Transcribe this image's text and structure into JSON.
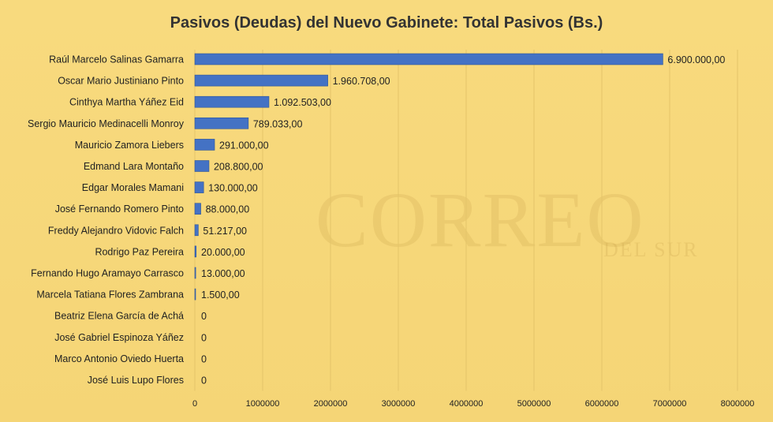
{
  "watermark": {
    "main": "CORREO",
    "sub": "DEL SUR"
  },
  "chart_data": {
    "type": "bar",
    "orientation": "horizontal",
    "title": "Pasivos (Deudas) del Nuevo Gabinete: Total Pasivos (Bs.)",
    "xlabel": "",
    "ylabel": "",
    "xlim": [
      0,
      8000000
    ],
    "x_ticks": [
      "0",
      "1000000",
      "2000000",
      "3000000",
      "4000000",
      "5000000",
      "6000000",
      "7000000",
      "8000000"
    ],
    "grid": true,
    "bar_color": "#4472c4",
    "categories": [
      "Raúl Marcelo Salinas Gamarra",
      "Oscar Mario Justiniano Pinto",
      "Cinthya Martha Yáñez Eid",
      "Sergio Mauricio Medinacelli Monroy",
      "Mauricio Zamora Liebers",
      "Edmand Lara Montaño",
      "Edgar Morales Mamani",
      "José Fernando Romero Pinto",
      "Freddy Alejandro Vidovic Falch",
      "Rodrigo Paz Pereira",
      "Fernando Hugo Aramayo Carrasco",
      "Marcela Tatiana Flores Zambrana",
      "Beatriz Elena García de Achá",
      "José Gabriel Espinoza Yáñez",
      "Marco Antonio Oviedo Huerta",
      "José Luis Lupo Flores"
    ],
    "values": [
      6900000,
      1960708,
      1092503,
      789033,
      291000,
      208800,
      130000,
      88000,
      51217,
      20000,
      13000,
      1500,
      0,
      0,
      0,
      0
    ],
    "value_labels": [
      "6.900.000,00",
      "1.960.708,00",
      "1.092.503,00",
      "789.033,00",
      "291.000,00",
      "208.800,00",
      "130.000,00",
      "88.000,00",
      "51.217,00",
      "20.000,00",
      "13.000,00",
      "1.500,00",
      "0",
      "0",
      "0",
      "0"
    ]
  }
}
